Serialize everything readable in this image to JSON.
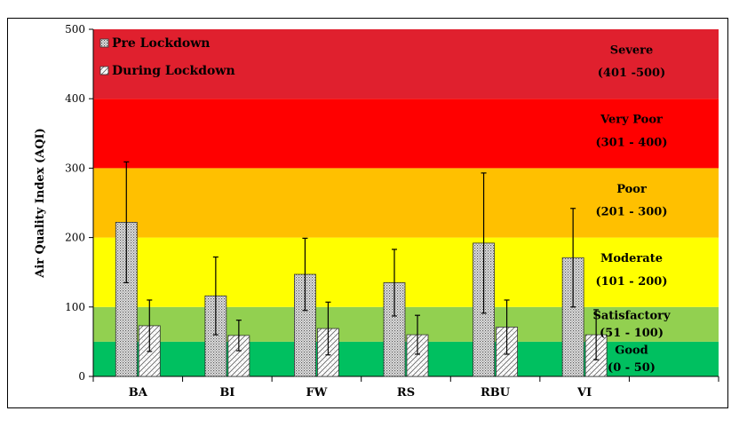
{
  "chart_data": {
    "type": "bar",
    "ylabel": "Air Quality Index (AQI)",
    "xlabel": "",
    "ylim": [
      0,
      500
    ],
    "yticks": [
      "0",
      "100",
      "200",
      "300",
      "400",
      "500"
    ],
    "categories": [
      "BA",
      "BI",
      "FW",
      "RS",
      "RBU",
      "VI"
    ],
    "series": [
      {
        "name": "Pre Lockdown",
        "values": [
          222,
          116,
          147,
          135,
          192,
          171
        ],
        "error": [
          87,
          56,
          52,
          48,
          101,
          71
        ],
        "pattern": "dots"
      },
      {
        "name": "During Lockdown",
        "values": [
          73,
          59,
          69,
          60,
          71,
          60
        ],
        "error": [
          37,
          22,
          38,
          28,
          39,
          36
        ],
        "pattern": "hatch"
      }
    ],
    "bands": [
      {
        "name": "Good",
        "range": "(0 - 50)",
        "from": 0,
        "to": 50,
        "color": "#00c060"
      },
      {
        "name": "Satisfactory",
        "range": "(51 - 100)",
        "from": 50,
        "to": 100,
        "color": "#92d050"
      },
      {
        "name": "Moderate",
        "range": "(101 - 200)",
        "from": 100,
        "to": 200,
        "color": "#ffff00"
      },
      {
        "name": "Poor",
        "range": "(201 - 300)",
        "from": 200,
        "to": 300,
        "color": "#ffc000"
      },
      {
        "name": "Very Poor",
        "range": "(301 - 400)",
        "from": 300,
        "to": 400,
        "color": "#ff0000"
      },
      {
        "name": "Severe",
        "range": "(401 -500)",
        "from": 400,
        "to": 500,
        "color": "#e0202e"
      }
    ],
    "legend_position": "top-left",
    "grid": false
  }
}
